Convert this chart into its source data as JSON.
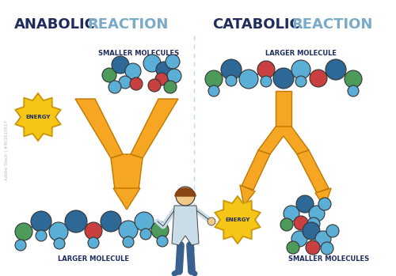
{
  "bg_color": "#ffffff",
  "divider_color": "#b8d8e8",
  "left_title_bold": "ANABOLIC",
  "left_title_normal": "REACTION",
  "right_title_bold": "CATABOLIC",
  "right_title_normal": "REACTION",
  "title_bold_color": "#1e2d5e",
  "title_normal_color": "#7aaac8",
  "title_fontsize": 13,
  "label_fontsize": 6.0,
  "label_color": "#1e2d5e",
  "energy_text": "ENERGY",
  "energy_color": "#f5c518",
  "energy_outline": "#c8960a",
  "arrow_color": "#f5a623",
  "arrow_outline": "#c07800",
  "smaller_molecules_label": "SMALLER MOLECULES",
  "larger_molecule_label": "LARGER MOLECULE",
  "molecule_colors": {
    "blue_light": "#5bafd6",
    "blue_dark": "#2e6897",
    "green": "#4e9a5a",
    "red": "#c84040",
    "teal": "#4a8888"
  },
  "watermark_text": "Adobe Stock | #901610617"
}
